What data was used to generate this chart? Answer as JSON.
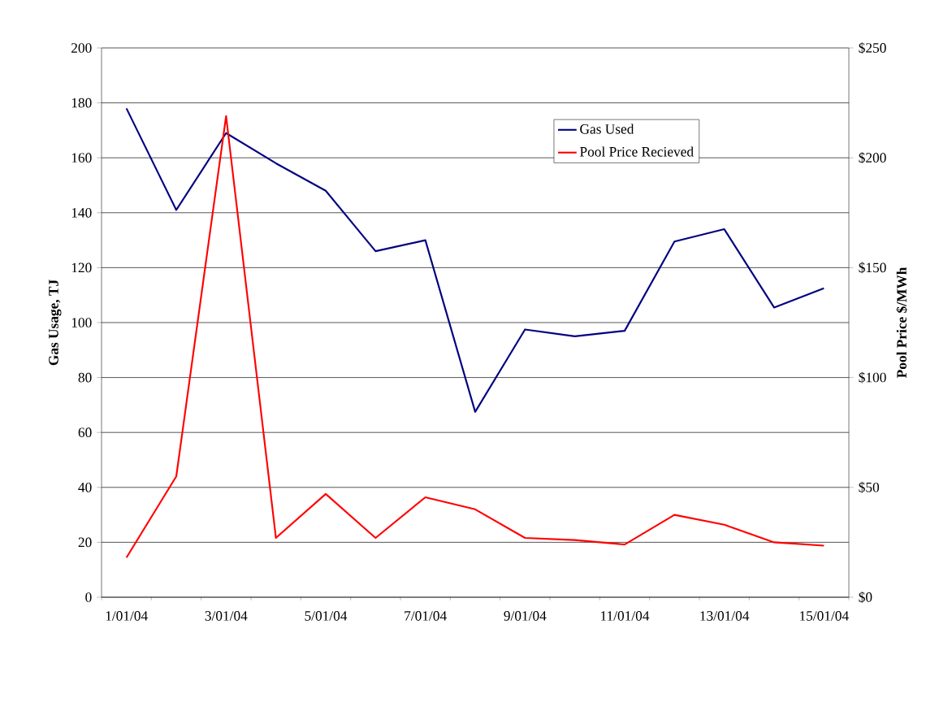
{
  "chart_data": {
    "type": "line",
    "ylabel": "Gas Usage, TJ",
    "y2label": "Pool Price $/MWh",
    "categories": [
      "1/01/04",
      null,
      "3/01/04",
      null,
      "5/01/04",
      null,
      "7/01/04",
      null,
      "9/01/04",
      null,
      "11/01/04",
      null,
      "13/01/04",
      null,
      "15/01/04"
    ],
    "series": [
      {
        "name": "Gas Used",
        "color": "#000080",
        "values": [
          178,
          141,
          169,
          158,
          148,
          126,
          130,
          67.5,
          97.5,
          95,
          97,
          129.5,
          134,
          105.5,
          112.5
        ]
      },
      {
        "name": "Pool Price Recieved",
        "color": "#ff0000",
        "axis": "y2",
        "values": [
          18,
          55,
          219,
          27,
          47,
          27,
          45.5,
          40,
          27,
          26,
          24,
          37.5,
          33,
          25,
          23.5
        ]
      }
    ],
    "ylim": [
      0,
      200
    ],
    "yticks": [
      0,
      20,
      40,
      60,
      80,
      100,
      120,
      140,
      160,
      180,
      200
    ],
    "y2lim": [
      0,
      250
    ],
    "y2ticks": [
      {
        "value": 0,
        "label": "$0"
      },
      {
        "value": 50,
        "label": "$50"
      },
      {
        "value": 100,
        "label": "$100"
      },
      {
        "value": 150,
        "label": "$150"
      },
      {
        "value": 200,
        "label": "$200"
      },
      {
        "value": 250,
        "label": "$250"
      }
    ],
    "grid": "y",
    "legend": "top right",
    "marker": "none",
    "line_style": "solid"
  }
}
